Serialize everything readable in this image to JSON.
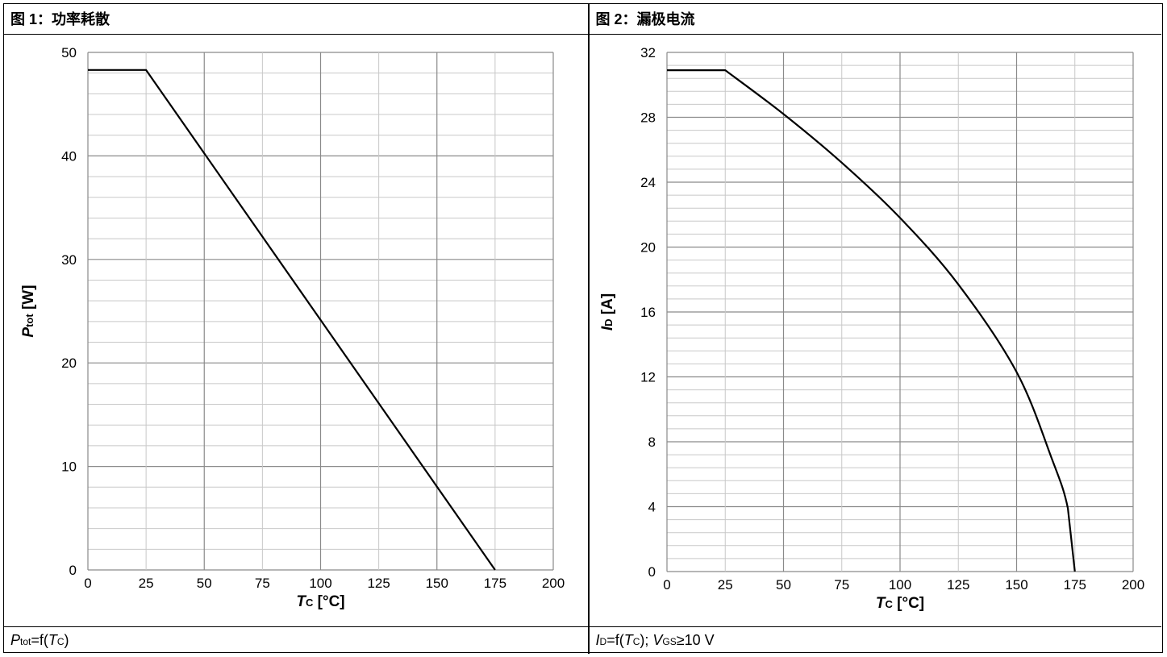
{
  "panels": {
    "left": {
      "header": "图 1：功率耗散",
      "footer": {
        "main": "P",
        "sub": "tot",
        "rest": "=f(",
        "var": "T",
        "varsub": "C",
        "close": ")"
      }
    },
    "right": {
      "header": "图 2：漏极电流",
      "footer": {
        "main": "I",
        "sub": "D",
        "rest": "=f(",
        "var": "T",
        "varsub": "C",
        "close": "); ",
        "v": "V",
        "vsub": "GS",
        "cond": "≥10 V"
      }
    }
  },
  "chart_data": [
    {
      "type": "line",
      "xlabel": {
        "sym": "T",
        "sub": "C",
        "unit": " [°C]"
      },
      "ylabel": {
        "sym": "P",
        "sub": "tot",
        "unit": " [W]"
      },
      "xlim": [
        0,
        200
      ],
      "ylim": [
        0,
        50
      ],
      "xticks": [
        0,
        25,
        50,
        75,
        100,
        125,
        150,
        175,
        200
      ],
      "yticks": [
        0,
        10,
        20,
        30,
        40,
        50
      ],
      "grid": true,
      "series": [
        {
          "x": [
            0,
            25,
            175
          ],
          "y": [
            48.3,
            48.3,
            0
          ]
        }
      ]
    },
    {
      "type": "line",
      "xlabel": {
        "sym": "T",
        "sub": "C",
        "unit": " [°C]"
      },
      "ylabel": {
        "sym": "I",
        "sub": "D",
        "unit": " [A]"
      },
      "xlim": [
        0,
        200
      ],
      "ylim": [
        0,
        32
      ],
      "xticks": [
        0,
        25,
        50,
        75,
        100,
        125,
        150,
        175,
        200
      ],
      "yticks": [
        0,
        4,
        8,
        12,
        16,
        20,
        24,
        28,
        32
      ],
      "grid": true,
      "series": [
        {
          "x": [
            0,
            25,
            50,
            75,
            100,
            125,
            150,
            165,
            172,
            175
          ],
          "y": [
            30.9,
            30.9,
            28.2,
            25.2,
            21.8,
            17.7,
            12.3,
            7.0,
            3.9,
            0
          ]
        }
      ]
    }
  ]
}
